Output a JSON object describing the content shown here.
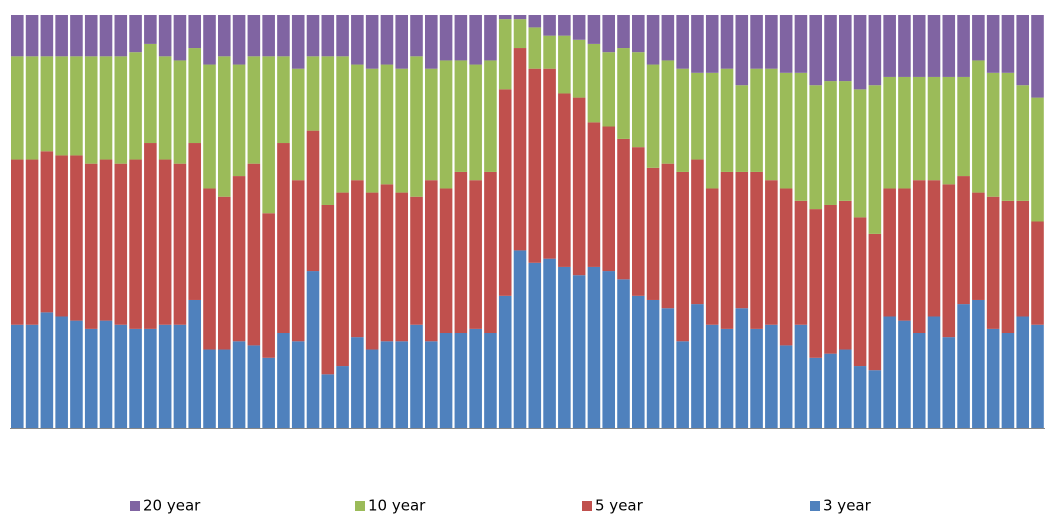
{
  "chart_data": {
    "type": "stacked-bar-100",
    "categories": [
      null,
      null,
      null,
      null,
      null,
      null,
      null,
      null,
      null,
      null,
      null,
      null,
      null,
      null,
      null,
      null,
      null,
      null,
      null,
      null,
      null,
      null,
      null,
      null,
      null,
      null,
      null,
      null,
      null,
      null,
      null,
      null,
      null,
      null,
      null,
      null,
      null,
      null,
      null,
      null,
      null,
      null,
      null,
      null,
      null,
      null,
      null,
      null,
      null,
      null,
      null,
      null,
      null,
      null,
      null,
      null,
      null,
      null,
      null,
      null,
      null,
      null,
      null,
      null,
      null,
      null,
      null,
      null,
      null,
      null
    ],
    "ylim": [
      0,
      100
    ],
    "legend": "bottom",
    "series": [
      {
        "name": "3 year",
        "color": "#4f81bd",
        "values": [
          25,
          25,
          28,
          27,
          26,
          24,
          26,
          25,
          24,
          24,
          25,
          25,
          31,
          19,
          19,
          21,
          20,
          17,
          23,
          21,
          38,
          13,
          15,
          22,
          19,
          21,
          21,
          25,
          21,
          23,
          23,
          24,
          23,
          32,
          43,
          40,
          41,
          39,
          37,
          39,
          38,
          36,
          32,
          31,
          29,
          21,
          30,
          25,
          24,
          29,
          24,
          25,
          20,
          25,
          17,
          18,
          19,
          15,
          14,
          27,
          26,
          23,
          27,
          22,
          30,
          31,
          24,
          23,
          27,
          25
        ]
      },
      {
        "name": "5 year",
        "color": "#c0504d",
        "values": [
          40,
          40,
          39,
          39,
          40,
          40,
          39,
          39,
          41,
          45,
          40,
          39,
          38,
          39,
          37,
          40,
          44,
          35,
          46,
          39,
          34,
          41,
          42,
          38,
          38,
          38,
          36,
          31,
          39,
          35,
          39,
          36,
          39,
          50,
          49,
          47,
          46,
          42,
          43,
          35,
          35,
          34,
          36,
          32,
          35,
          41,
          35,
          33,
          38,
          33,
          38,
          35,
          38,
          30,
          36,
          36,
          36,
          36,
          33,
          31,
          32,
          37,
          33,
          37,
          31,
          26,
          32,
          32,
          28,
          25
        ]
      },
      {
        "name": "10 year",
        "color": "#9bbb59",
        "values": [
          25,
          25,
          23,
          24,
          24,
          26,
          25,
          26,
          26,
          24,
          25,
          25,
          23,
          30,
          34,
          27,
          26,
          38,
          21,
          27,
          18,
          36,
          33,
          28,
          30,
          29,
          30,
          34,
          27,
          31,
          27,
          28,
          27,
          17,
          7,
          10,
          8,
          14,
          14,
          19,
          18,
          22,
          23,
          25,
          25,
          25,
          21,
          28,
          25,
          21,
          25,
          27,
          28,
          31,
          30,
          30,
          29,
          31,
          36,
          27,
          27,
          25,
          25,
          26,
          24,
          32,
          30,
          31,
          28,
          30
        ]
      },
      {
        "name": "20 year",
        "color": "#8064a2",
        "values": [
          10,
          10,
          10,
          10,
          10,
          10,
          10,
          10,
          9,
          7,
          10,
          11,
          8,
          12,
          10,
          12,
          10,
          10,
          10,
          13,
          10,
          10,
          10,
          12,
          13,
          12,
          13,
          10,
          13,
          11,
          11,
          12,
          11,
          1,
          1,
          3,
          5,
          5,
          6,
          7,
          9,
          8,
          9,
          12,
          11,
          13,
          14,
          14,
          13,
          17,
          13,
          13,
          14,
          14,
          17,
          16,
          16,
          18,
          17,
          15,
          15,
          15,
          15,
          15,
          15,
          11,
          14,
          14,
          17,
          20
        ]
      }
    ]
  }
}
